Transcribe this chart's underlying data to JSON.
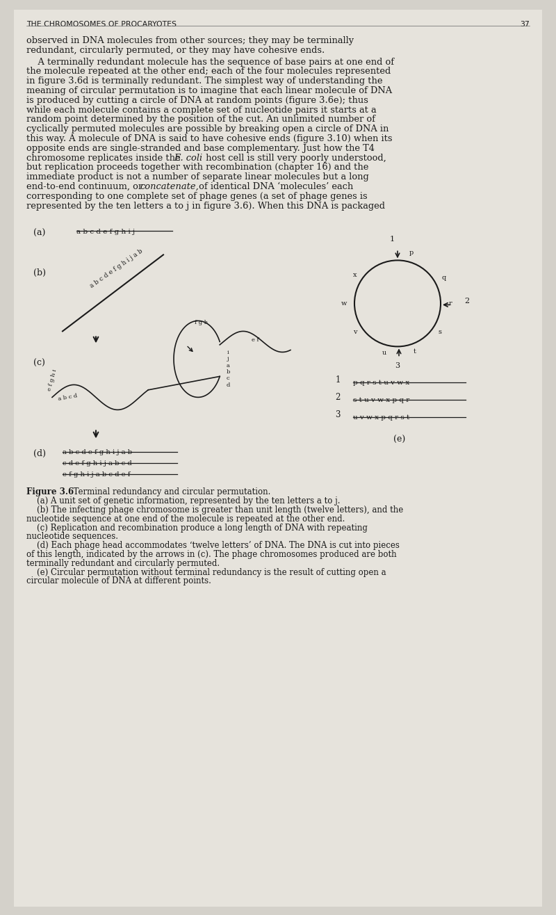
{
  "bg_color": "#d4d1ca",
  "page_color": "#e6e3dc",
  "text_color": "#1a1a1a",
  "header_text": "THE CHROMOSOMES OF PROCARYOTES",
  "page_number": "37",
  "label_a": "a b c d e f g h i j",
  "label_b": "a b c d e f g h i j a b",
  "label_d1": "a b c d e f g h i j a b",
  "label_d2": "c d e f g h i j a b c d",
  "label_d3": "e f g h i j a b c d e f",
  "linear_labels_1": "p q r s t u v w x",
  "linear_labels_2": "s t u v w x p q r",
  "linear_labels_3": "u v w x p q r s t"
}
